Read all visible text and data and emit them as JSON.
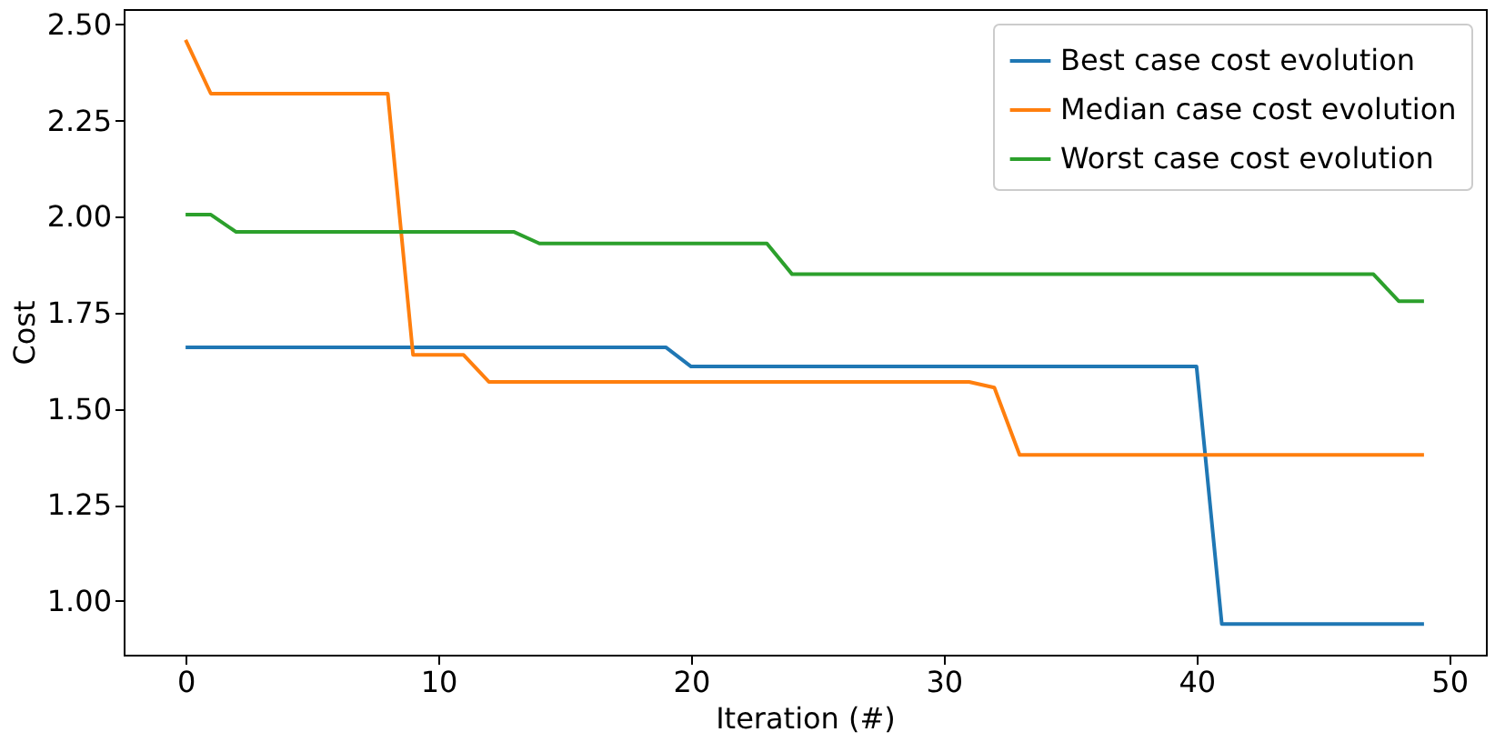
{
  "chart_data": {
    "type": "line",
    "xlabel": "Iteration (#)",
    "ylabel": "Cost",
    "x": [
      0,
      1,
      2,
      3,
      4,
      5,
      6,
      7,
      8,
      9,
      10,
      11,
      12,
      13,
      14,
      15,
      16,
      17,
      18,
      19,
      20,
      21,
      22,
      23,
      24,
      25,
      26,
      27,
      28,
      29,
      30,
      31,
      32,
      33,
      34,
      35,
      36,
      37,
      38,
      39,
      40,
      41,
      42,
      43,
      44,
      45,
      46,
      47,
      48,
      49
    ],
    "series": [
      {
        "name": "Best case cost evolution",
        "color": "#1f77b4",
        "values": [
          1.66,
          1.66,
          1.66,
          1.66,
          1.66,
          1.66,
          1.66,
          1.66,
          1.66,
          1.66,
          1.66,
          1.66,
          1.66,
          1.66,
          1.66,
          1.66,
          1.66,
          1.66,
          1.66,
          1.66,
          1.61,
          1.61,
          1.61,
          1.61,
          1.61,
          1.61,
          1.61,
          1.61,
          1.61,
          1.61,
          1.61,
          1.61,
          1.61,
          1.61,
          1.61,
          1.61,
          1.61,
          1.61,
          1.61,
          1.61,
          1.61,
          0.94,
          0.94,
          0.94,
          0.94,
          0.94,
          0.94,
          0.94,
          0.94,
          0.94
        ]
      },
      {
        "name": "Median case cost evolution",
        "color": "#ff7f0e",
        "values": [
          2.46,
          2.32,
          2.32,
          2.32,
          2.32,
          2.32,
          2.32,
          2.32,
          2.32,
          1.64,
          1.64,
          1.64,
          1.57,
          1.57,
          1.57,
          1.57,
          1.57,
          1.57,
          1.57,
          1.57,
          1.57,
          1.57,
          1.57,
          1.57,
          1.57,
          1.57,
          1.57,
          1.57,
          1.57,
          1.57,
          1.57,
          1.57,
          1.555,
          1.38,
          1.38,
          1.38,
          1.38,
          1.38,
          1.38,
          1.38,
          1.38,
          1.38,
          1.38,
          1.38,
          1.38,
          1.38,
          1.38,
          1.38,
          1.38,
          1.38
        ]
      },
      {
        "name": "Worst case cost evolution",
        "color": "#2ca02c",
        "values": [
          2.005,
          2.005,
          1.96,
          1.96,
          1.96,
          1.96,
          1.96,
          1.96,
          1.96,
          1.96,
          1.96,
          1.96,
          1.96,
          1.96,
          1.93,
          1.93,
          1.93,
          1.93,
          1.93,
          1.93,
          1.93,
          1.93,
          1.93,
          1.93,
          1.85,
          1.85,
          1.85,
          1.85,
          1.85,
          1.85,
          1.85,
          1.85,
          1.85,
          1.85,
          1.85,
          1.85,
          1.85,
          1.85,
          1.85,
          1.85,
          1.85,
          1.85,
          1.85,
          1.85,
          1.85,
          1.85,
          1.85,
          1.85,
          1.78,
          1.78
        ]
      }
    ],
    "xlim": [
      -2.45,
      51.45
    ],
    "xticks": [
      0,
      10,
      20,
      30,
      40,
      50
    ],
    "ylim": [
      0.86,
      2.54
    ],
    "yticks": [
      {
        "value": 1,
        "label": "1.00"
      },
      {
        "value": 1.25,
        "label": "1.25"
      },
      {
        "value": 1.5,
        "label": "1.50"
      },
      {
        "value": 1.75,
        "label": "1.75"
      },
      {
        "value": 2,
        "label": "2.00"
      },
      {
        "value": 2.25,
        "label": "2.25"
      },
      {
        "value": 2.5,
        "label": "2.50"
      }
    ],
    "legend": "top right",
    "grid": false,
    "marker": "none",
    "line_style": "solid"
  }
}
